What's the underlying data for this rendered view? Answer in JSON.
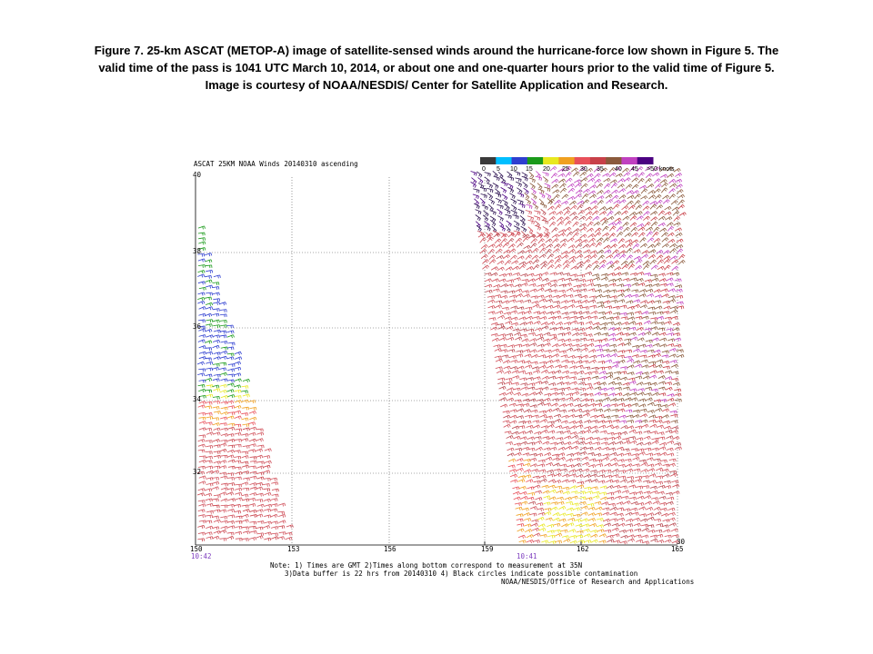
{
  "caption": {
    "line1": "Figure 7.  25-km ASCAT (METOP-A) image of satellite-sensed winds around the hurricane-force low shown in Figure 5.  The",
    "line2": "valid time of the pass is 1041 UTC March 10, 2014, or about one and one-quarter hours prior to the valid time of Figure 5.",
    "line3": "Image is courtesy of NOAA/NESDIS/ Center for Satellite Application and Research."
  },
  "figure": {
    "title": "ASCAT 25KM NOAA Winds 20140310 ascending",
    "lat_labels": [
      "40",
      "38",
      "36",
      "34",
      "32",
      "30"
    ],
    "lon_labels": [
      "150",
      "153",
      "156",
      "159",
      "162",
      "165"
    ],
    "pass_times": [
      "10:42",
      "10:41"
    ],
    "legend": {
      "labels": [
        "0",
        "5",
        "10",
        "15",
        "20",
        "25",
        "30",
        "35",
        "40",
        "45",
        ">50 knots"
      ],
      "colors": [
        "#3a3a3a",
        "#00bfff",
        "#2f3fd0",
        "#1a9a1a",
        "#e8e820",
        "#f0a020",
        "#e8505a",
        "#c84048",
        "#8b5a3c",
        "#c040c0",
        "#4b0082"
      ]
    },
    "notes": [
      "Note: 1) Times are GMT 2)Times along bottom correspond to measurement at 35N",
      "3)Data buffer is 22 hrs from 20140310 4) Black circles indicate possible contamination",
      "NOAA/NESDIS/Office of Research and Applications"
    ]
  }
}
